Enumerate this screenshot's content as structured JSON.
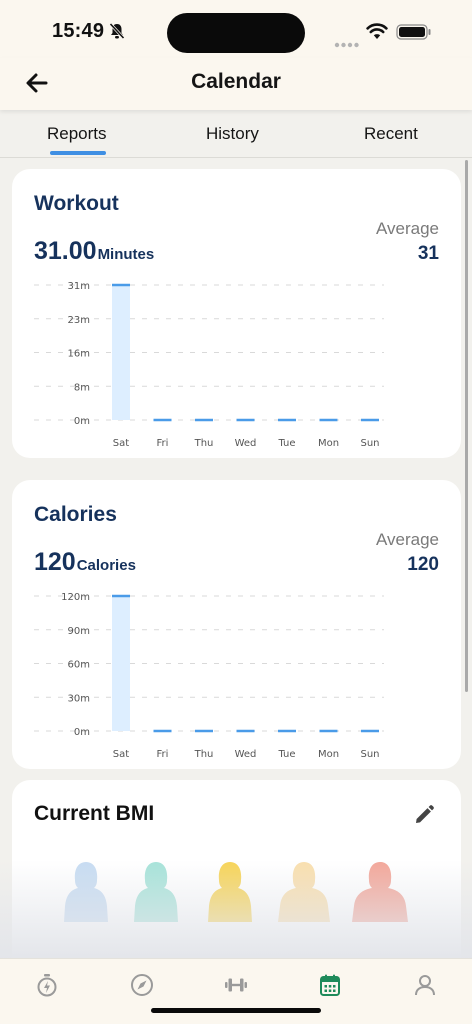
{
  "status": {
    "time": "15:49"
  },
  "nav": {
    "title": "Calendar"
  },
  "tabs": [
    {
      "label": "Reports",
      "active": true
    },
    {
      "label": "History",
      "active": false
    },
    {
      "label": "Recent",
      "active": false
    }
  ],
  "workout": {
    "title": "Workout",
    "total_value": "31.00",
    "total_unit": "Minutes",
    "average_label": "Average",
    "average_value": "31"
  },
  "calories": {
    "title": "Calories",
    "total_value": "120",
    "total_unit": "Calories",
    "average_label": "Average",
    "average_value": "120"
  },
  "bmi": {
    "title": "Current BMI"
  },
  "colors": {
    "accent": "#3f8fe3",
    "bar_fill": "#ddeeff",
    "bar_stroke": "#4a9be8",
    "title_navy": "#16325c",
    "active_tab_icon": "#1e8a5a",
    "bmi_silhouettes": [
      "#c7dcf2",
      "#a7e3d9",
      "#f7d458",
      "#f9dfae",
      "#f3a79a"
    ]
  },
  "chart_data": [
    {
      "type": "bar",
      "categories": [
        "Sat",
        "Fri",
        "Thu",
        "Wed",
        "Tue",
        "Mon",
        "Sun"
      ],
      "values": [
        31,
        0,
        0,
        0,
        0,
        0,
        0
      ],
      "ytick_labels": [
        "0m",
        "8m",
        "16m",
        "23m",
        "31m"
      ],
      "ylim": [
        0,
        31
      ],
      "title": "Workout",
      "grid": true
    },
    {
      "type": "bar",
      "categories": [
        "Sat",
        "Fri",
        "Thu",
        "Wed",
        "Tue",
        "Mon",
        "Sun"
      ],
      "values": [
        120,
        0,
        0,
        0,
        0,
        0,
        0
      ],
      "ytick_labels": [
        "0m",
        "30m",
        "60m",
        "90m",
        "120m"
      ],
      "ylim": [
        0,
        120
      ],
      "title": "Calories",
      "grid": true
    }
  ],
  "tabbar": {
    "icons": [
      "stopwatch-icon",
      "compass-icon",
      "dumbbell-icon",
      "calendar-icon",
      "profile-icon"
    ],
    "active_index": 3
  }
}
